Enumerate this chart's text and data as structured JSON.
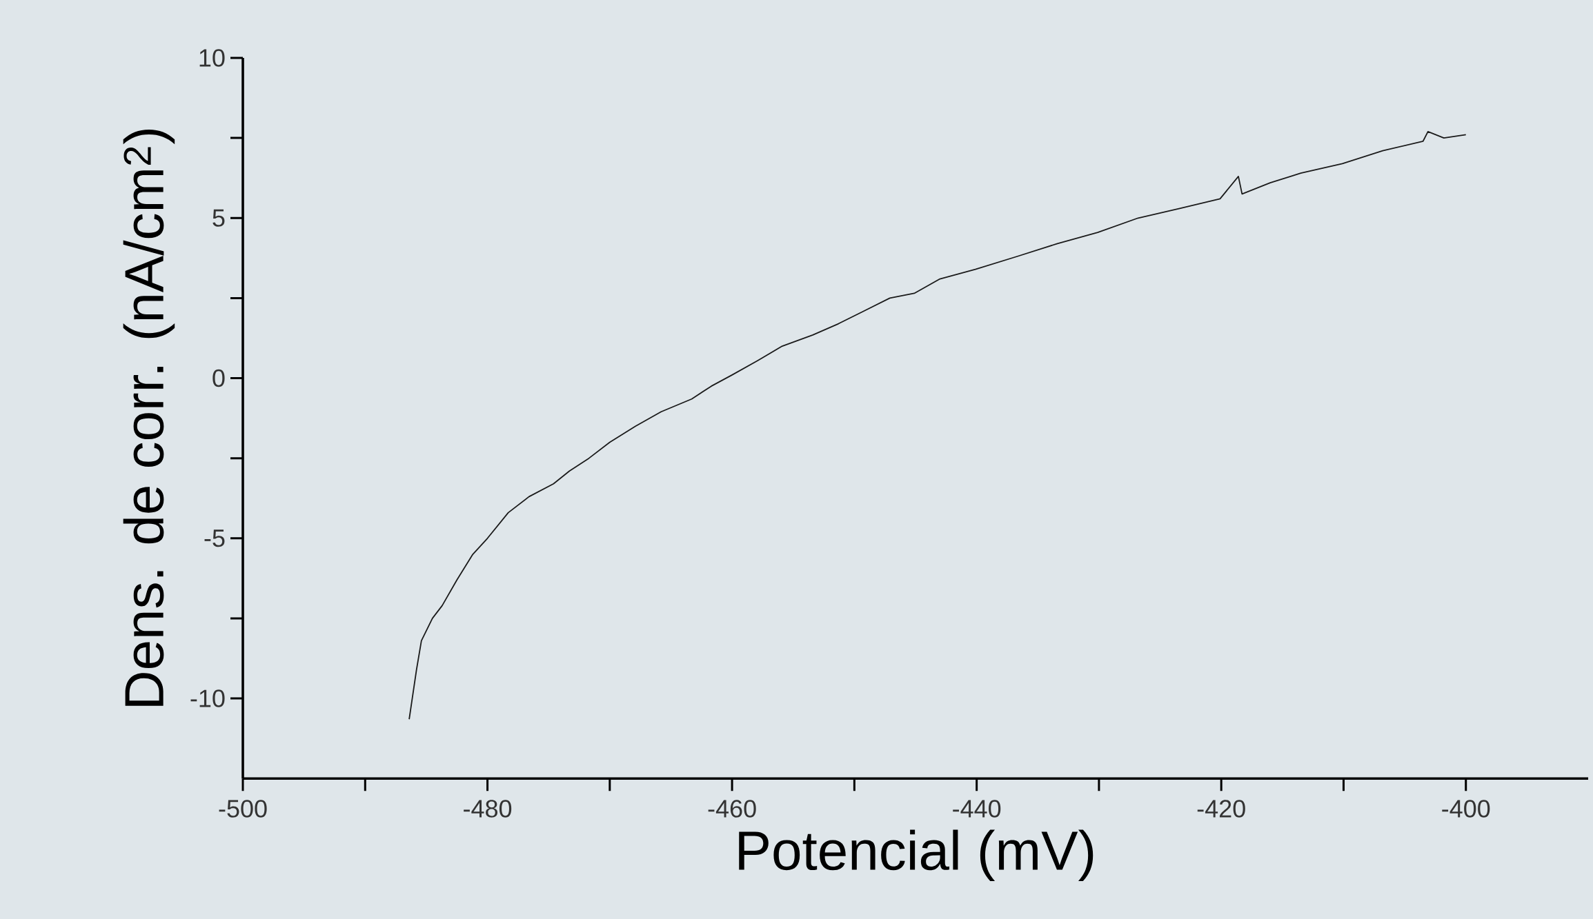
{
  "chart_data": {
    "type": "line",
    "xlabel": "Potencial (mV)",
    "ylabel": "Dens. de corr. (nA/cm$^{2}$)",
    "xlim": [
      -500,
      -390
    ],
    "ylim": [
      -12.5,
      10
    ],
    "xticks": [
      -500,
      -480,
      -460,
      -440,
      -420,
      -400
    ],
    "yticks": [
      -10,
      -5,
      0,
      5,
      10
    ],
    "series": [
      {
        "color": "#1a1a1a",
        "x": [
          -486.4,
          -485.8,
          -485.4,
          -484.5,
          -483.7,
          -482.5,
          -481.2,
          -480.0,
          -478.3,
          -476.6,
          -474.6,
          -473.3,
          -471.7,
          -470.0,
          -467.9,
          -465.8,
          -463.3,
          -461.7,
          -460.0,
          -457.9,
          -455.9,
          -453.4,
          -451.3,
          -449.2,
          -447.1,
          -445.1,
          -443.0,
          -440.1,
          -436.7,
          -433.4,
          -430.1,
          -426.8,
          -423.4,
          -420.1,
          -418.6,
          -418.3,
          -416.0,
          -413.5,
          -410.1,
          -406.8,
          -403.5,
          -403.1,
          -401.8,
          -400.0
        ],
        "values": [
          -10.65,
          -9.1,
          -8.2,
          -7.5,
          -7.1,
          -6.3,
          -5.5,
          -5.0,
          -4.2,
          -3.7,
          -3.3,
          -2.9,
          -2.5,
          -2.0,
          -1.5,
          -1.05,
          -0.65,
          -0.25,
          0.1,
          0.55,
          1.0,
          1.35,
          1.7,
          2.1,
          2.5,
          2.65,
          3.1,
          3.4,
          3.8,
          4.2,
          4.55,
          5.0,
          5.3,
          5.6,
          6.3,
          5.75,
          6.1,
          6.4,
          6.7,
          7.1,
          7.4,
          7.7,
          7.5,
          7.6
        ]
      }
    ]
  }
}
